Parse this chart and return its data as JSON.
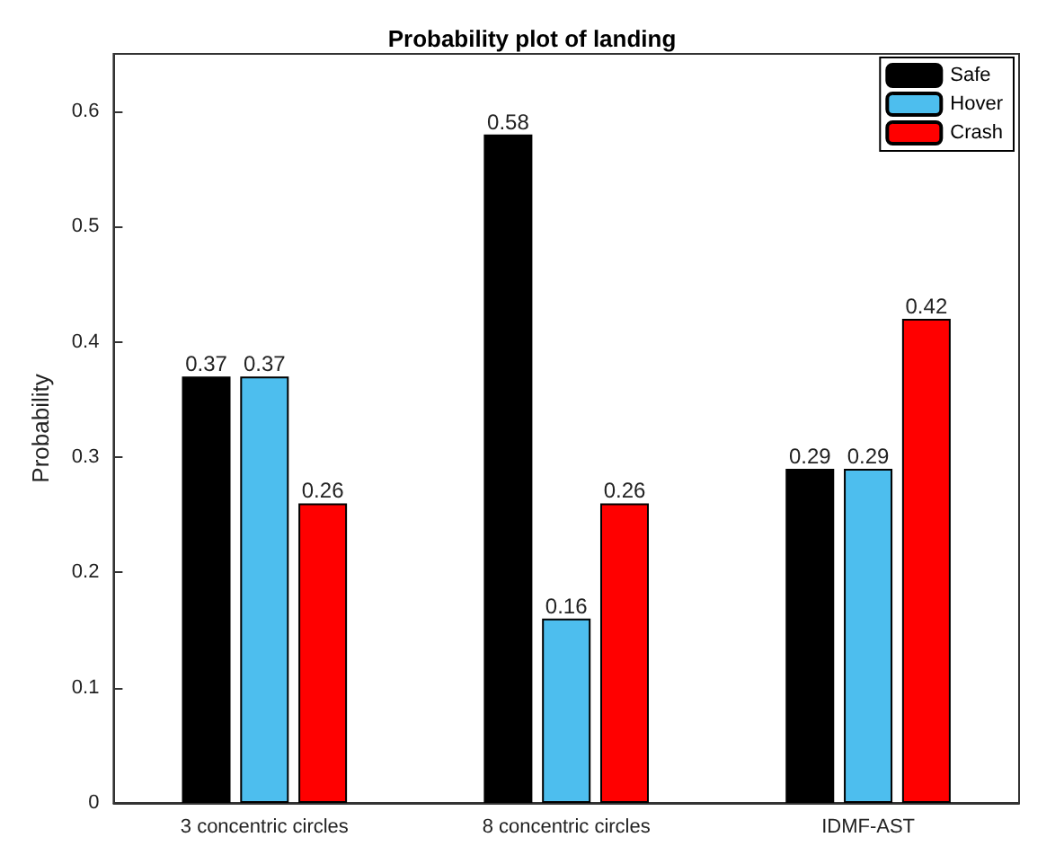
{
  "chart_data": {
    "type": "bar",
    "title": "Probability plot of landing",
    "ylabel": "Probability",
    "categories": [
      "3 concentric circles",
      "8 concentric circles",
      "IDMF-AST"
    ],
    "series": [
      {
        "name": "Safe",
        "color": "#000000",
        "values": [
          0.37,
          0.58,
          0.29
        ]
      },
      {
        "name": "Hover",
        "color": "#4dbeee",
        "values": [
          0.37,
          0.16,
          0.29
        ]
      },
      {
        "name": "Crash",
        "color": "#ff0000",
        "values": [
          0.26,
          0.26,
          0.42
        ]
      }
    ],
    "ylim": [
      0,
      0.65
    ],
    "yticks": [
      0,
      0.1,
      0.2,
      0.3,
      0.4,
      0.5,
      0.6
    ],
    "grid": false,
    "legend": "top right",
    "data_labels": true
  }
}
